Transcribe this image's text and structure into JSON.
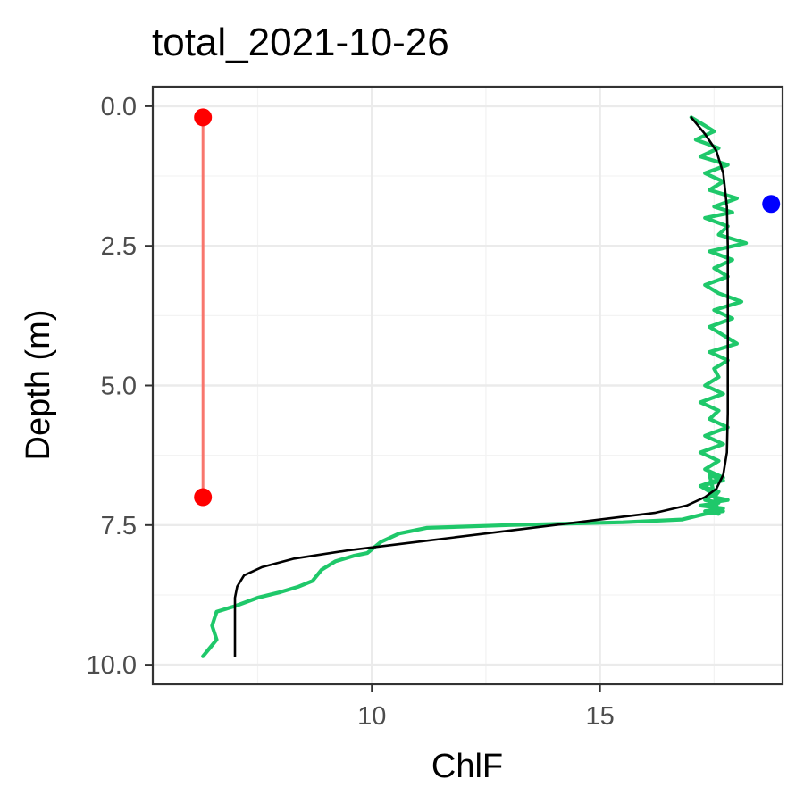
{
  "chart_data": {
    "type": "line",
    "title": "total_2021-10-26",
    "xlabel": "ChlF",
    "ylabel": "Depth (m)",
    "xlim": [
      5.2,
      19.0
    ],
    "ylim": [
      10.35,
      -0.35
    ],
    "y_reversed": true,
    "x_ticks": [
      10,
      15
    ],
    "x_tick_labels": [
      "10",
      "15"
    ],
    "y_ticks": [
      0,
      2.5,
      5,
      7.5,
      10
    ],
    "y_tick_labels": [
      "0.0",
      "2.5",
      "5.0",
      "7.5",
      "10.0"
    ],
    "grid": true,
    "legend": "none",
    "series": [
      {
        "role": "observed",
        "color": "#1fc86a",
        "x": [
          17.0,
          17.2,
          17.5,
          17.1,
          17.6,
          17.2,
          17.8,
          17.3,
          17.7,
          17.4,
          18.0,
          17.5,
          17.9,
          17.3,
          17.8,
          17.6,
          18.2,
          17.4,
          17.9,
          17.5,
          17.8,
          17.3,
          17.6,
          18.1,
          17.5,
          17.9,
          17.4,
          17.7,
          18.0,
          17.4,
          17.8,
          17.5,
          17.6,
          17.3,
          17.7,
          17.2,
          17.6,
          17.4,
          17.8,
          17.3,
          17.7,
          17.2,
          17.6,
          17.3,
          17.7,
          17.2,
          17.5,
          17.3,
          17.6,
          17.2,
          17.7,
          17.3,
          17.6,
          17.4,
          17.7,
          17.2,
          17.6,
          17.5,
          17.8,
          17.4,
          17.6,
          17.7,
          17.3,
          16.8,
          15.5,
          13.0,
          11.2,
          10.6,
          10.2,
          9.9,
          9.6,
          9.2,
          8.9,
          8.7,
          8.4,
          8.0,
          7.5,
          7.0,
          6.6,
          6.5,
          6.6,
          6.4,
          6.3
        ],
        "y": [
          0.2,
          0.3,
          0.45,
          0.6,
          0.75,
          0.9,
          1.05,
          1.2,
          1.35,
          1.5,
          1.65,
          1.8,
          1.9,
          2.0,
          2.15,
          2.3,
          2.45,
          2.6,
          2.75,
          2.9,
          3.05,
          3.2,
          3.35,
          3.5,
          3.65,
          3.8,
          3.95,
          4.1,
          4.25,
          4.4,
          4.55,
          4.7,
          4.85,
          5.0,
          5.15,
          5.3,
          5.45,
          5.6,
          5.75,
          5.9,
          6.05,
          6.2,
          6.35,
          6.5,
          6.65,
          6.8,
          6.95,
          7.05,
          7.1,
          7.15,
          7.2,
          7.25,
          7.3,
          6.6,
          6.7,
          6.8,
          6.9,
          7.0,
          7.05,
          7.1,
          7.2,
          7.25,
          7.3,
          7.4,
          7.45,
          7.5,
          7.55,
          7.65,
          7.8,
          8.0,
          8.05,
          8.15,
          8.3,
          8.5,
          8.6,
          8.7,
          8.8,
          8.95,
          9.05,
          9.3,
          9.55,
          9.75,
          9.85
        ]
      },
      {
        "role": "fitted",
        "color": "#000000",
        "x": [
          17.0,
          17.3,
          17.55,
          17.7,
          17.78,
          17.8,
          17.8,
          17.8,
          17.8,
          17.78,
          17.7,
          17.55,
          17.3,
          16.9,
          16.2,
          15.0,
          13.0,
          11.0,
          9.5,
          8.3,
          7.6,
          7.2,
          7.05,
          7.0,
          7.0,
          7.0
        ],
        "y": [
          0.2,
          0.5,
          0.8,
          1.2,
          1.8,
          2.5,
          3.5,
          4.5,
          5.5,
          6.2,
          6.6,
          6.85,
          7.0,
          7.15,
          7.28,
          7.4,
          7.6,
          7.8,
          7.95,
          8.1,
          8.25,
          8.4,
          8.6,
          8.8,
          9.2,
          9.85
        ]
      },
      {
        "role": "range",
        "color": "#f8766d",
        "x": [
          6.3,
          6.3
        ],
        "y": [
          0.2,
          7.0
        ]
      }
    ],
    "points": [
      {
        "x": 6.3,
        "y": 0.2,
        "color": "#ff0000"
      },
      {
        "x": 6.3,
        "y": 7.0,
        "color": "#ff0000"
      },
      {
        "x": 18.75,
        "y": 1.75,
        "color": "#0000ff"
      }
    ]
  }
}
